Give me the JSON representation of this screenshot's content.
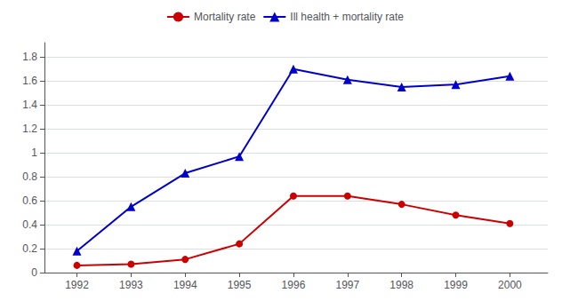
{
  "chart_data": {
    "type": "line",
    "x": [
      1992,
      1993,
      1994,
      1995,
      1996,
      1997,
      1998,
      1999,
      2000
    ],
    "series": [
      {
        "name": "Mortality rate",
        "color": "#cc0000",
        "marker": "circle",
        "values": [
          0.06,
          0.07,
          0.11,
          0.24,
          0.64,
          0.64,
          0.57,
          0.48,
          0.41
        ]
      },
      {
        "name": "Ill health + mortality rate",
        "color": "#0000cc",
        "marker": "triangle",
        "values": [
          0.18,
          0.55,
          0.83,
          0.97,
          1.7,
          1.61,
          1.55,
          1.57,
          1.64
        ]
      }
    ],
    "xlim": [
      1991.4,
      2000.7
    ],
    "xticks": [
      1992,
      1993,
      1994,
      1995,
      1996,
      1997,
      1998,
      1999,
      2000
    ],
    "ylim": [
      0,
      1.92
    ],
    "yticks": [
      0,
      0.2,
      0.4,
      0.6,
      0.8,
      1.0,
      1.2,
      1.4,
      1.6,
      1.8
    ],
    "grid": true,
    "legend": "top"
  }
}
